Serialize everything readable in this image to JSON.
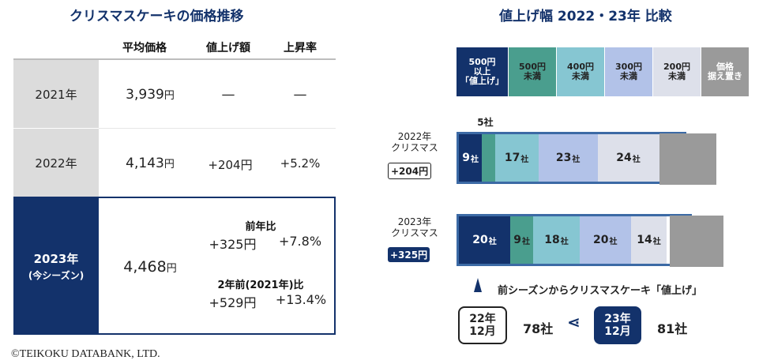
{
  "left": {
    "title": "クリスマスケーキの価格推移",
    "headers": {
      "avg": "平均価格",
      "increase": "値上げ額",
      "rate": "上昇率"
    },
    "rows": [
      {
        "year": "2021年",
        "price": "3,939",
        "yen": "円",
        "increase": "—",
        "rate": "—"
      },
      {
        "year": "2022年",
        "price": "4,143",
        "yen": "円",
        "increase": "+204円",
        "rate": "+5.2%"
      }
    ],
    "row2023": {
      "year": "2023年",
      "season": "(今シーズン)",
      "price": "4,468",
      "yen": "円",
      "yoy_label": "前年比",
      "yoy_increase": "+325円",
      "yoy_rate": "+7.8%",
      "vs2021_label": "2年前(2021年)比",
      "vs2021_increase": "+529円",
      "vs2021_rate": "+13.4%"
    },
    "copyright": "©TEIKOKU DATABANK, LTD."
  },
  "right": {
    "title": "値上げ幅 2022・23年 比較",
    "bar2022": {
      "label_line1": "2022年",
      "label_line2": "クリスマス",
      "badge": "+204円"
    },
    "bar2023": {
      "label_line1": "2023年",
      "label_line2": "クリスマス",
      "badge": "+325円"
    },
    "note": "前シーズンからクリスマスケーキ「値上げ」",
    "compare": {
      "left_box": "22年\n12月",
      "left_value": "78社",
      "right_box": "23年\n12月",
      "right_value": "81社"
    }
  },
  "chart_data": {
    "type": "bar",
    "orientation": "horizontal-stacked",
    "title": "値上げ幅 2022・23年 比較",
    "unit": "社",
    "categories": [
      "2022年 クリスマス",
      "2023年 クリスマス"
    ],
    "series": [
      {
        "name": "500円以上「値上げ」",
        "color": "#13326b",
        "text_color": "#ffffff",
        "values": [
          9,
          20
        ]
      },
      {
        "name": "500円未満",
        "color": "#4a9e8e",
        "text_color": "#222222",
        "values": [
          5,
          9
        ]
      },
      {
        "name": "400円未満",
        "color": "#86c6d2",
        "text_color": "#222222",
        "values": [
          17,
          18
        ]
      },
      {
        "name": "300円未満",
        "color": "#b2c2e8",
        "text_color": "#222222",
        "values": [
          23,
          20
        ]
      },
      {
        "name": "200円未満",
        "color": "#dde0ea",
        "text_color": "#222222",
        "values": [
          24,
          14
        ]
      },
      {
        "name": "価格据え置き",
        "color": "#9a9a9a",
        "text_color": "#ffffff",
        "values": [
          null,
          null
        ]
      }
    ],
    "legend_labels": [
      [
        "500円",
        "以上",
        "「値上げ」"
      ],
      [
        "500円",
        "未満"
      ],
      [
        "400円",
        "未満"
      ],
      [
        "300円",
        "未満"
      ],
      [
        "200円",
        "未満"
      ],
      [
        "価格",
        "据え置き"
      ]
    ],
    "legend_placement": "top",
    "grid": false
  }
}
